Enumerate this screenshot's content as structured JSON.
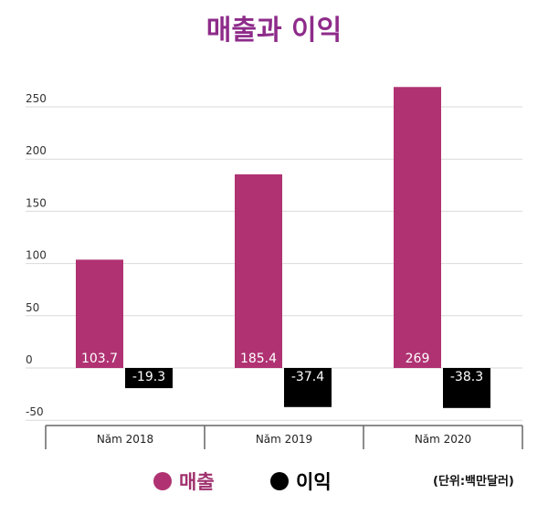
{
  "chart_data": {
    "type": "bar",
    "title": "매출과 이익",
    "unit_note": "(단위:백만달러)",
    "categories": [
      "Năm 2018",
      "Năm 2019",
      "Năm 2020"
    ],
    "series": [
      {
        "name": "매출",
        "values": [
          103.7,
          185.4,
          269
        ],
        "labels": [
          "103.7",
          "185.4",
          "269"
        ],
        "color": "#b03272"
      },
      {
        "name": "이익",
        "values": [
          -19.3,
          -37.4,
          -38.3
        ],
        "labels": [
          "-19.3",
          "-37.4",
          "-38.3"
        ],
        "color": "#000000"
      }
    ],
    "yticks": [
      250,
      200,
      150,
      100,
      50,
      0,
      -50
    ],
    "ylim": [
      -55,
      275
    ],
    "grid": true,
    "legend": "bottom"
  }
}
